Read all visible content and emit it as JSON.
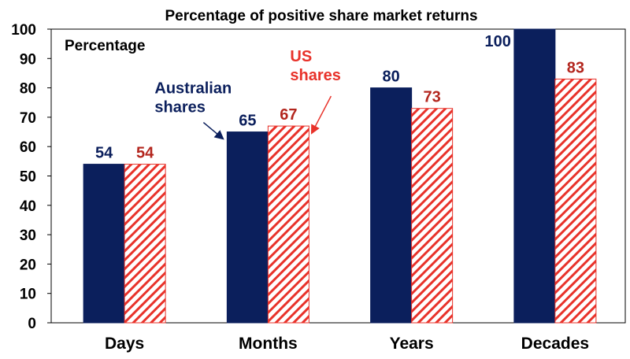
{
  "chart_data": {
    "type": "bar",
    "title": "Percentage of positive share market returns",
    "ylabel": "Percentage",
    "xlabel": "",
    "ylim": [
      0,
      100
    ],
    "yticks": [
      0,
      10,
      20,
      30,
      40,
      50,
      60,
      70,
      80,
      90,
      100
    ],
    "categories": [
      "Days",
      "Months",
      "Years",
      "Decades"
    ],
    "series": [
      {
        "name": "Australian shares",
        "values": [
          54,
          65,
          80,
          100
        ],
        "color": "#0b1f5c",
        "pattern": "solid"
      },
      {
        "name": "US shares",
        "values": [
          54,
          67,
          73,
          83
        ],
        "color": "#e8322a",
        "pattern": "diagonal-hatch"
      }
    ],
    "annotations": [
      {
        "text_lines": [
          "Australian",
          "shares"
        ],
        "color": "#0b1f5c",
        "points_to": {
          "category": "Months",
          "series": 0
        }
      },
      {
        "text_lines": [
          "US",
          "shares"
        ],
        "color": "#e8322a",
        "points_to": {
          "category": "Months",
          "series": 1
        }
      }
    ],
    "grid": false,
    "legend": "none"
  }
}
